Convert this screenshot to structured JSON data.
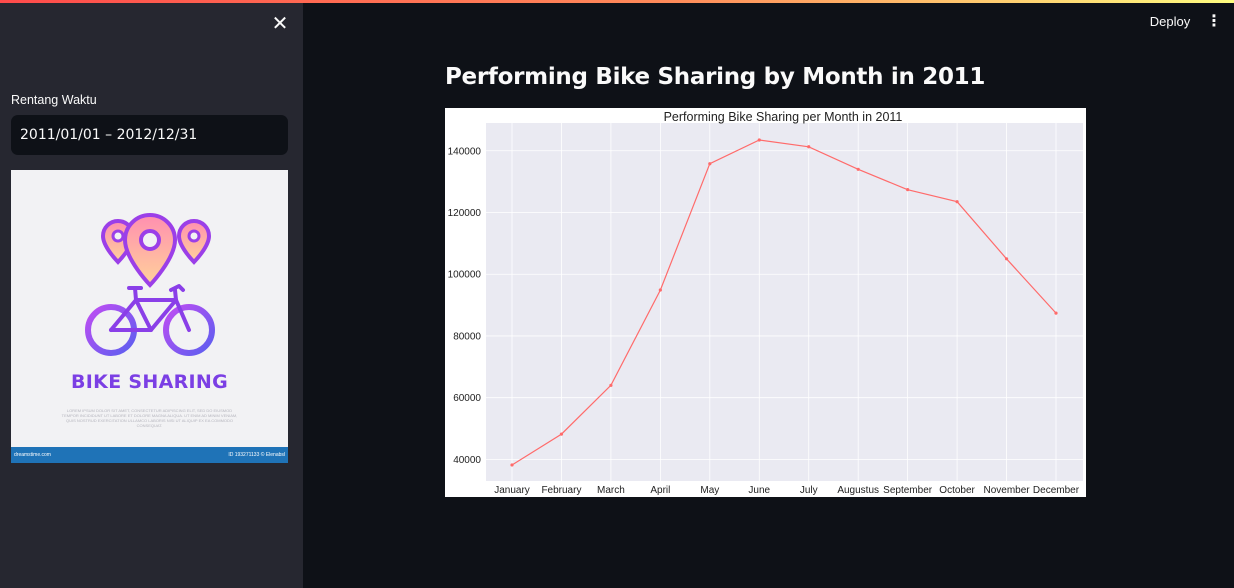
{
  "sidebar": {
    "close_icon_glyph": "✕",
    "date_range": {
      "label": "Rentang Waktu",
      "value": "2011/01/01 – 2012/12/31"
    },
    "logo": {
      "title": "BIKE SHARING",
      "lorem": "LOREM IPSUM DOLOR SIT AMET, CONSECTETUR ADIPISCING ELIT, SED DO EIUSMOD TEMPOR INCIDIDUNT UT LABORE ET DOLORE MAGNA ALIQUA. UT ENIM AD MINIM VENIAM, QUIS NOSTRUD EXERCITATION ULLAMCO LABORIS NISI UT ALIQUIP EX EA COMMODO CONSEQUAT.",
      "footer_left": "dreamstime.com",
      "footer_right": "ID 193271133 © Elenabsl",
      "colors": {
        "purple": "#7b3fe4",
        "pink": "#ff8fb0",
        "peach": "#ffd29a",
        "blue": "#3fa9f5"
      }
    }
  },
  "header": {
    "deploy_label": "Deploy",
    "menu_glyph": "⋮",
    "accent_colors": [
      "#ff4b4b",
      "#fffd80"
    ]
  },
  "main": {
    "title": "Performing Bike Sharing by Month in 2011"
  },
  "chart_data": {
    "type": "line",
    "title": "Performing Bike Sharing per Month in 2011",
    "xlabel": "",
    "ylabel": "",
    "categories": [
      "January",
      "February",
      "March",
      "April",
      "May",
      "June",
      "July",
      "Augustus",
      "September",
      "October",
      "November",
      "December"
    ],
    "values": [
      38200,
      48200,
      64000,
      94900,
      135800,
      143500,
      141300,
      134000,
      127400,
      123500,
      105000,
      87400
    ],
    "y_ticks": [
      40000,
      60000,
      80000,
      100000,
      120000,
      140000
    ],
    "ylim": [
      33000,
      149000
    ],
    "grid": true,
    "line_color": "#ff6b6b",
    "background": "#eaeaf2"
  }
}
